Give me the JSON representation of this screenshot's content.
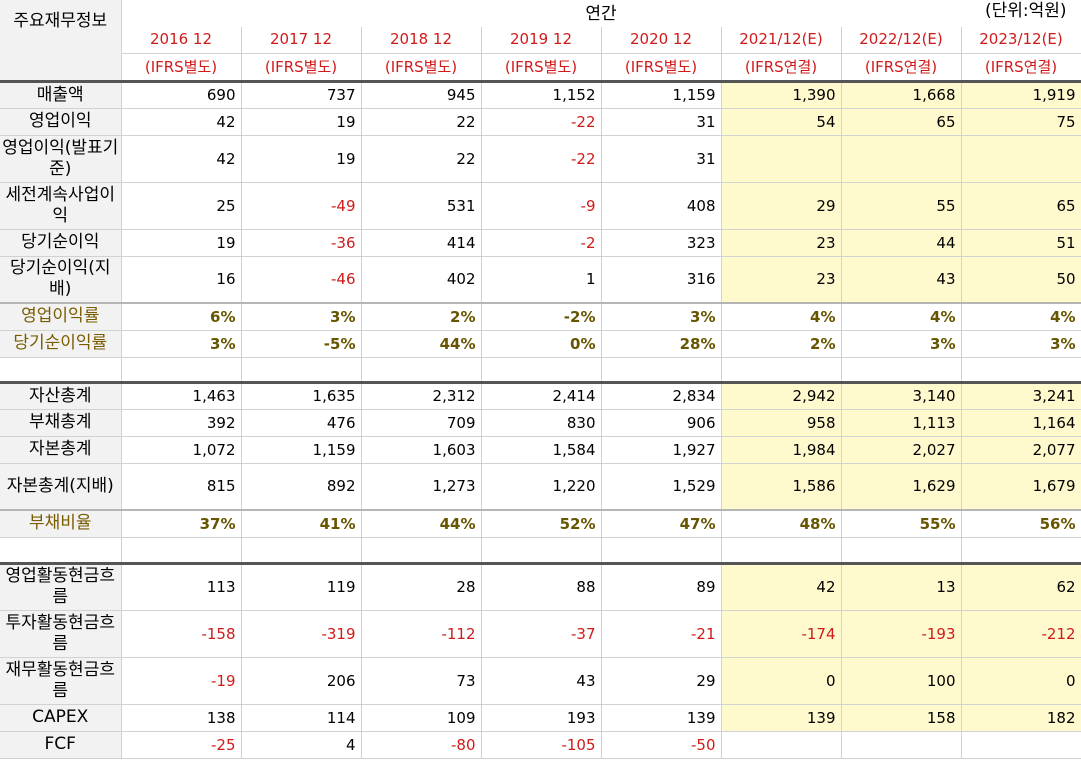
{
  "header": {
    "corner": "주요재무정보",
    "period": "연간",
    "unit": "(단위:억원)",
    "years": [
      "2016 12",
      "2017 12",
      "2018 12",
      "2019 12",
      "2020 12",
      "2021/12(E)",
      "2022/12(E)",
      "2023/12(E)"
    ],
    "bases": [
      "(IFRS별도)",
      "(IFRS별도)",
      "(IFRS별도)",
      "(IFRS별도)",
      "(IFRS별도)",
      "(IFRS연결)",
      "(IFRS연결)",
      "(IFRS연결)"
    ]
  },
  "rows": [
    {
      "label": "매출액",
      "values": [
        "690",
        "737",
        "945",
        "1,152",
        "1,159",
        "1,390",
        "1,668",
        "1,919"
      ]
    },
    {
      "label": "영업이익",
      "values": [
        "42",
        "19",
        "22",
        "-22",
        "31",
        "54",
        "65",
        "75"
      ]
    },
    {
      "label": "영업이익(발표기준)",
      "values": [
        "42",
        "19",
        "22",
        "-22",
        "31",
        "",
        "",
        ""
      ]
    },
    {
      "label": "세전계속사업이익",
      "values": [
        "25",
        "-49",
        "531",
        "-9",
        "408",
        "29",
        "55",
        "65"
      ]
    },
    {
      "label": "당기순이익",
      "values": [
        "19",
        "-36",
        "414",
        "-2",
        "323",
        "23",
        "44",
        "51"
      ]
    },
    {
      "label": "당기순이익(지배)",
      "values": [
        "16",
        "-46",
        "402",
        "1",
        "316",
        "23",
        "43",
        "50"
      ]
    },
    {
      "label": "영업이익률",
      "values": [
        "6%",
        "3%",
        "2%",
        "-2%",
        "3%",
        "4%",
        "4%",
        "4%"
      ]
    },
    {
      "label": "당기순이익률",
      "values": [
        "3%",
        "-5%",
        "44%",
        "0%",
        "28%",
        "2%",
        "3%",
        "3%"
      ]
    },
    {
      "label": "자산총계",
      "values": [
        "1,463",
        "1,635",
        "2,312",
        "2,414",
        "2,834",
        "2,942",
        "3,140",
        "3,241"
      ]
    },
    {
      "label": "부채총계",
      "values": [
        "392",
        "476",
        "709",
        "830",
        "906",
        "958",
        "1,113",
        "1,164"
      ]
    },
    {
      "label": "자본총계",
      "values": [
        "1,072",
        "1,159",
        "1,603",
        "1,584",
        "1,927",
        "1,984",
        "2,027",
        "2,077"
      ]
    },
    {
      "label": "자본총계(지배)",
      "values": [
        "815",
        "892",
        "1,273",
        "1,220",
        "1,529",
        "1,586",
        "1,629",
        "1,679"
      ]
    },
    {
      "label": "부채비율",
      "values": [
        "37%",
        "41%",
        "44%",
        "52%",
        "47%",
        "48%",
        "55%",
        "56%"
      ]
    },
    {
      "label": "영업활동현금흐름",
      "values": [
        "113",
        "119",
        "28",
        "88",
        "89",
        "42",
        "13",
        "62"
      ]
    },
    {
      "label": "투자활동현금흐름",
      "values": [
        "-158",
        "-319",
        "-112",
        "-37",
        "-21",
        "-174",
        "-193",
        "-212"
      ]
    },
    {
      "label": "재무활동현금흐름",
      "values": [
        "-19",
        "206",
        "73",
        "43",
        "29",
        "0",
        "100",
        "0"
      ]
    },
    {
      "label": "CAPEX",
      "values": [
        "138",
        "114",
        "109",
        "193",
        "139",
        "139",
        "158",
        "182"
      ]
    },
    {
      "label": "FCF",
      "values": [
        "-25",
        "4",
        "-80",
        "-105",
        "-50",
        "",
        "",
        ""
      ]
    }
  ],
  "colors": {
    "negative": "#d11a1a",
    "estimate_bg": "#fffacd",
    "label_bg": "#f2f2f2",
    "ratio_text": "#675500"
  }
}
